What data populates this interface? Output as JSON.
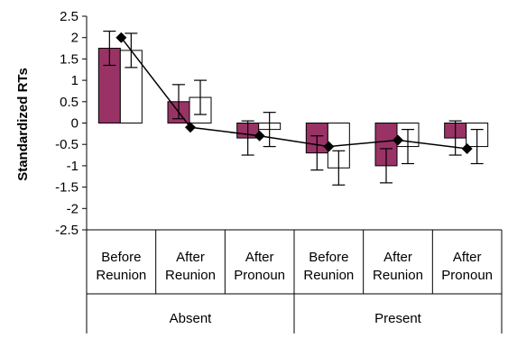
{
  "chart_data": {
    "type": "bar",
    "ylabel": "Standardized RTs",
    "ylim": [
      -2.5,
      2.5
    ],
    "ytick_step": 0.5,
    "yticks": [
      "2.5",
      "2",
      "1.5",
      "1",
      "0.5",
      "0",
      "-0.5",
      "-1",
      "-1.5",
      "-2",
      "-2.5"
    ],
    "groups": [
      {
        "label": "Absent",
        "categories": [
          0,
          1,
          2
        ]
      },
      {
        "label": "Present",
        "categories": [
          3,
          4,
          5
        ]
      }
    ],
    "categories": [
      [
        "Before",
        "Reunion"
      ],
      [
        "After",
        "Reunion"
      ],
      [
        "After",
        "Pronoun"
      ],
      [
        "Before",
        "Reunion"
      ],
      [
        "After",
        "Reunion"
      ],
      [
        "After",
        "Pronoun"
      ]
    ],
    "series": [
      {
        "color": "#993366",
        "values": [
          1.75,
          0.5,
          -0.35,
          -0.7,
          -1.0,
          -0.35
        ],
        "error": [
          0.4,
          0.4,
          0.4,
          0.4,
          0.4,
          0.4
        ]
      },
      {
        "color": "#ffffff",
        "values": [
          1.7,
          0.6,
          -0.15,
          -1.05,
          -0.55,
          -0.55
        ],
        "error": [
          0.4,
          0.4,
          0.4,
          0.4,
          0.4,
          0.4
        ]
      },
      {
        "type": "line",
        "marker": "diamond",
        "color": "#000000",
        "values": [
          2.0,
          -0.1,
          -0.3,
          -0.55,
          -0.4,
          -0.6
        ]
      }
    ],
    "grid": false,
    "legend": "none"
  }
}
